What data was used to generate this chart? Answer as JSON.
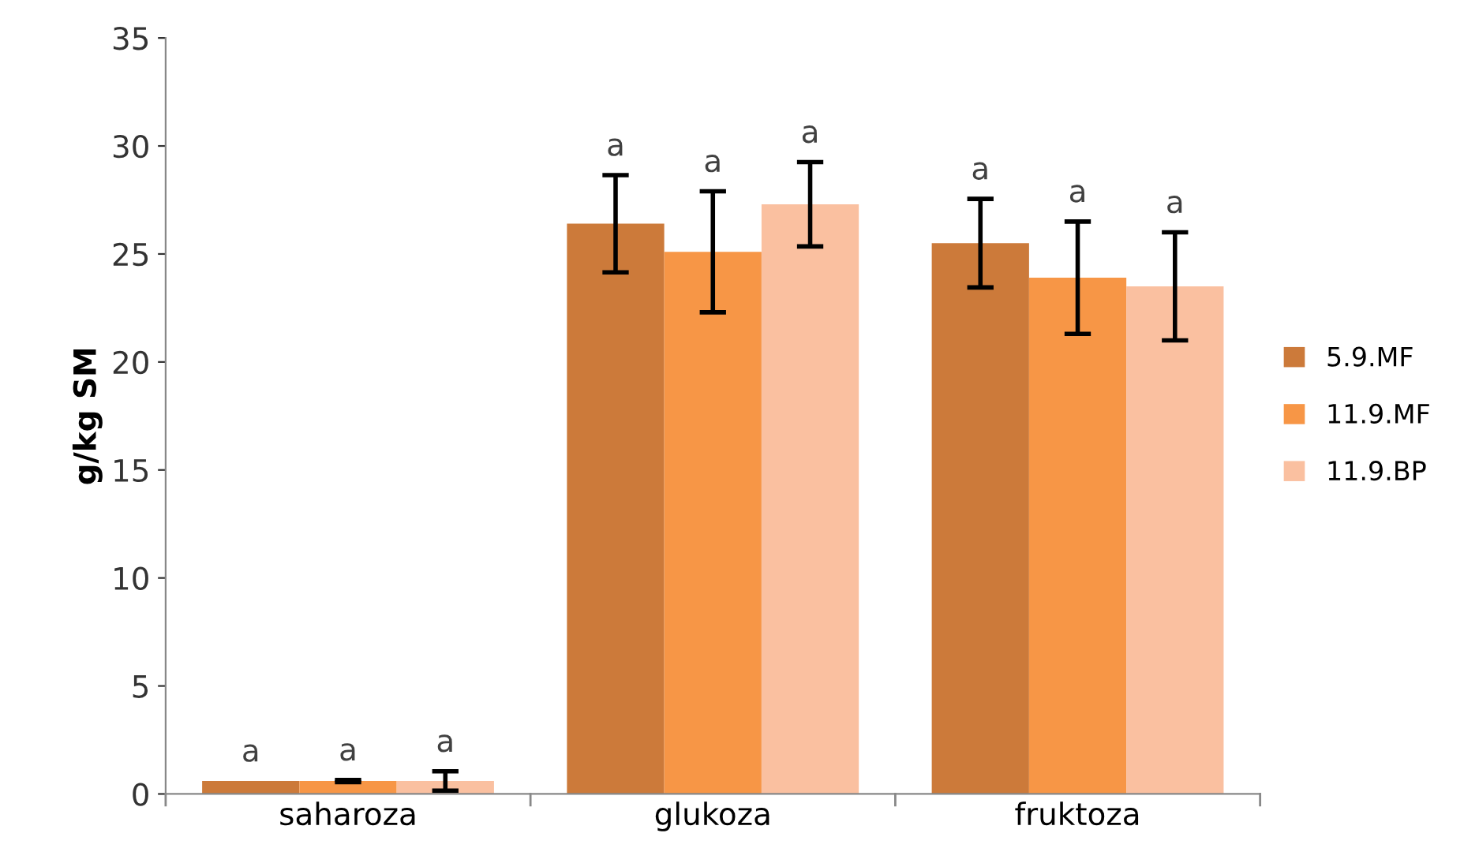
{
  "chart_data": {
    "type": "bar",
    "ylabel": "g/kg SM",
    "categories": [
      "saharoza",
      "glukoza",
      "fruktoza"
    ],
    "series": [
      {
        "name": "5.9.MF",
        "color": "#cc7a3a",
        "values": [
          0.6,
          26.4,
          25.5
        ],
        "errors": [
          null,
          2.25,
          2.05
        ]
      },
      {
        "name": "11.9.MF",
        "color": "#f79646",
        "values": [
          0.6,
          25.1,
          23.9
        ],
        "errors": [
          0.05,
          2.8,
          2.6
        ]
      },
      {
        "name": "11.9.BP",
        "color": "#fac0a0",
        "values": [
          0.6,
          27.3,
          23.5
        ],
        "errors": [
          0.45,
          1.95,
          2.5
        ]
      }
    ],
    "annotations": [
      "a",
      "a",
      "a",
      "a",
      "a",
      "a",
      "a",
      "a",
      "a"
    ],
    "ylim": [
      0,
      35
    ],
    "yticks": [
      0,
      5,
      10,
      15,
      20,
      25,
      30,
      35
    ],
    "grid": false,
    "legend": "right"
  }
}
